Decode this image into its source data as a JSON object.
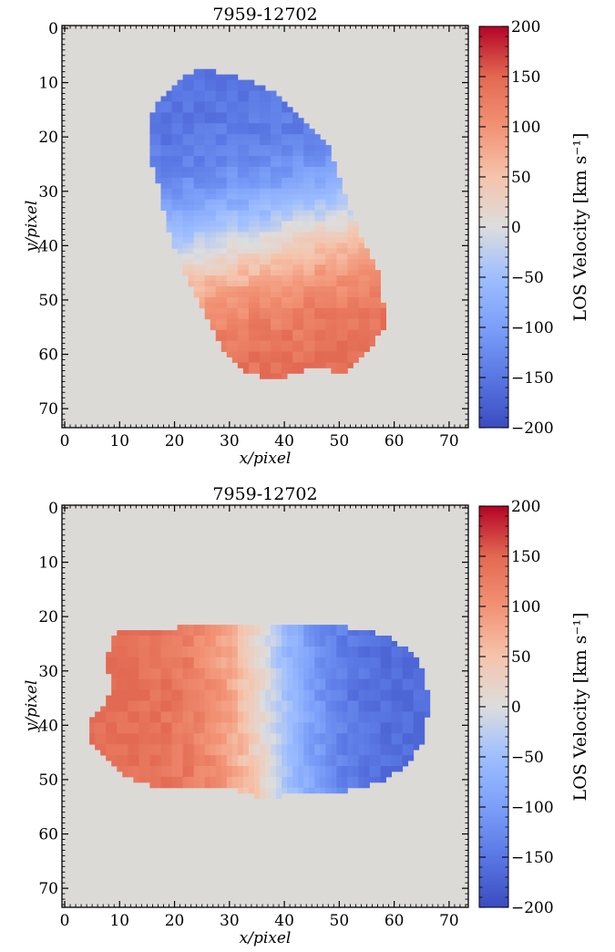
{
  "colors": {
    "background": "#dcdad7",
    "colormap": "coolwarm"
  },
  "colorbar": {
    "label": "LOS Velocity [km s⁻¹]",
    "ticks": [
      "200",
      "150",
      "100",
      "50",
      "0",
      "−50",
      "−100",
      "−150",
      "−200"
    ],
    "range": [
      -200,
      200
    ]
  },
  "chart_data": [
    {
      "type": "heatmap",
      "title": "7959-12702",
      "xlabel": "x/pixel",
      "ylabel": "y/pixel",
      "xlim": [
        -0.5,
        73.5
      ],
      "ylim": [
        73.5,
        -0.5
      ],
      "xticks": [
        "0",
        "10",
        "20",
        "30",
        "40",
        "50",
        "60",
        "70"
      ],
      "yticks": [
        "0",
        "10",
        "20",
        "30",
        "40",
        "50",
        "60",
        "70"
      ],
      "value_range": [
        -200,
        200
      ],
      "velocity_field": {
        "center": [
          38,
          38
        ],
        "gradient_axis": "y",
        "min_velocity": -160,
        "max_velocity": 150,
        "outline": [
          [
            26,
            8
          ],
          [
            23,
            9
          ],
          [
            19,
            12
          ],
          [
            16,
            17
          ],
          [
            16,
            24
          ],
          [
            18,
            30
          ],
          [
            19,
            37
          ],
          [
            21,
            42
          ],
          [
            23,
            47
          ],
          [
            26,
            53
          ],
          [
            29,
            59
          ],
          [
            33,
            64
          ],
          [
            40,
            65
          ],
          [
            46,
            63
          ],
          [
            52,
            64
          ],
          [
            56,
            60
          ],
          [
            59,
            55
          ],
          [
            58,
            46
          ],
          [
            55,
            40
          ],
          [
            53,
            35
          ],
          [
            51,
            29
          ],
          [
            49,
            23
          ],
          [
            45,
            18
          ],
          [
            40,
            13
          ],
          [
            34,
            10
          ]
        ]
      }
    },
    {
      "type": "heatmap",
      "title": "7959-12702",
      "xlabel": "x/pixel",
      "ylabel": "y/pixel",
      "xlim": [
        -0.5,
        73.5
      ],
      "ylim": [
        73.5,
        -0.5
      ],
      "xticks": [
        "0",
        "10",
        "20",
        "30",
        "40",
        "50",
        "60",
        "70"
      ],
      "yticks": [
        "0",
        "10",
        "20",
        "30",
        "40",
        "50",
        "60",
        "70"
      ],
      "value_range": [
        -200,
        200
      ],
      "velocity_field": {
        "center": [
          37,
          37
        ],
        "gradient_axis": "x",
        "min_velocity": -170,
        "max_velocity": 150,
        "outline": [
          [
            10,
            23
          ],
          [
            8,
            28
          ],
          [
            9,
            33
          ],
          [
            8,
            37
          ],
          [
            5,
            40
          ],
          [
            5,
            43
          ],
          [
            9,
            47
          ],
          [
            12,
            50
          ],
          [
            17,
            52
          ],
          [
            25,
            52
          ],
          [
            31,
            52
          ],
          [
            37,
            54
          ],
          [
            43,
            53
          ],
          [
            50,
            53
          ],
          [
            58,
            51
          ],
          [
            63,
            48
          ],
          [
            66,
            43
          ],
          [
            67,
            36
          ],
          [
            65,
            28
          ],
          [
            59,
            24
          ],
          [
            50,
            22
          ],
          [
            42,
            22
          ],
          [
            32,
            22
          ],
          [
            25,
            22
          ],
          [
            17,
            23
          ]
        ]
      }
    }
  ]
}
